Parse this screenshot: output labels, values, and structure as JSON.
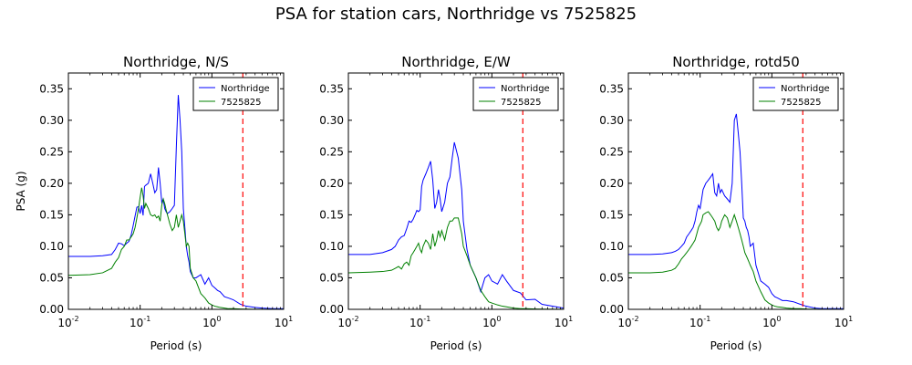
{
  "figure": {
    "suptitle": "PSA for station cars, Northridge vs 7525825"
  },
  "chart_data": [
    {
      "type": "line",
      "title": "Northridge, N/S",
      "xlabel": "Period (s)",
      "ylabel": "PSA (g)",
      "xscale": "log",
      "xlim": [
        0.01,
        10
      ],
      "ylim": [
        0,
        0.375
      ],
      "xticks": [
        0.01,
        0.1,
        1,
        10
      ],
      "xtick_labels": [
        [
          "10",
          "-2"
        ],
        [
          "10",
          "-1"
        ],
        [
          "10",
          "0"
        ],
        [
          "10",
          "1"
        ]
      ],
      "yticks": [
        0,
        0.05,
        0.1,
        0.15,
        0.2,
        0.25,
        0.3,
        0.35
      ],
      "ytick_labels": [
        "0.00",
        "0.05",
        "0.10",
        "0.15",
        "0.20",
        "0.25",
        "0.30",
        "0.35"
      ],
      "legend_position": "top-right",
      "vline": {
        "x": 2.7,
        "color": "#ff0000",
        "style": "dashed"
      },
      "series": [
        {
          "name": "Northridge",
          "color": "#0000ff",
          "x": [
            0.01,
            0.02,
            0.03,
            0.04,
            0.045,
            0.05,
            0.055,
            0.06,
            0.065,
            0.07,
            0.075,
            0.08,
            0.085,
            0.09,
            0.095,
            0.1,
            0.105,
            0.11,
            0.115,
            0.12,
            0.13,
            0.14,
            0.15,
            0.16,
            0.17,
            0.18,
            0.19,
            0.2,
            0.21,
            0.22,
            0.23,
            0.24,
            0.26,
            0.28,
            0.3,
            0.32,
            0.34,
            0.36,
            0.38,
            0.4,
            0.42,
            0.44,
            0.46,
            0.48,
            0.5,
            0.55,
            0.6,
            0.7,
            0.8,
            0.9,
            1.0,
            1.1,
            1.2,
            1.3,
            1.5,
            1.7,
            2.0,
            2.5,
            3.0,
            4.0,
            5.0,
            7.0,
            10.0
          ],
          "y": [
            0.084,
            0.084,
            0.085,
            0.087,
            0.095,
            0.105,
            0.104,
            0.101,
            0.105,
            0.108,
            0.118,
            0.133,
            0.148,
            0.162,
            0.163,
            0.152,
            0.165,
            0.149,
            0.195,
            0.197,
            0.2,
            0.215,
            0.2,
            0.185,
            0.19,
            0.225,
            0.2,
            0.17,
            0.175,
            0.16,
            0.155,
            0.152,
            0.155,
            0.16,
            0.165,
            0.26,
            0.34,
            0.3,
            0.25,
            0.16,
            0.13,
            0.1,
            0.085,
            0.075,
            0.06,
            0.05,
            0.05,
            0.055,
            0.04,
            0.05,
            0.038,
            0.034,
            0.03,
            0.028,
            0.02,
            0.018,
            0.015,
            0.008,
            0.005,
            0.003,
            0.002,
            0.001,
            0.001
          ]
        },
        {
          "name": "7525825",
          "color": "#008000",
          "x": [
            0.01,
            0.02,
            0.03,
            0.04,
            0.045,
            0.05,
            0.055,
            0.06,
            0.065,
            0.07,
            0.075,
            0.08,
            0.085,
            0.09,
            0.095,
            0.1,
            0.105,
            0.11,
            0.115,
            0.12,
            0.13,
            0.14,
            0.15,
            0.16,
            0.17,
            0.18,
            0.19,
            0.2,
            0.21,
            0.22,
            0.23,
            0.24,
            0.26,
            0.28,
            0.3,
            0.32,
            0.34,
            0.36,
            0.38,
            0.4,
            0.42,
            0.44,
            0.46,
            0.48,
            0.5,
            0.55,
            0.6,
            0.7,
            0.8,
            0.9,
            1.0,
            1.1,
            1.2,
            1.3,
            1.5,
            1.7,
            2.0,
            2.5,
            3.0,
            4.0,
            5.0,
            7.0,
            10.0
          ],
          "y": [
            0.054,
            0.055,
            0.058,
            0.065,
            0.075,
            0.082,
            0.095,
            0.1,
            0.11,
            0.11,
            0.115,
            0.12,
            0.13,
            0.145,
            0.16,
            0.178,
            0.193,
            0.18,
            0.16,
            0.168,
            0.16,
            0.15,
            0.148,
            0.15,
            0.145,
            0.148,
            0.14,
            0.165,
            0.175,
            0.168,
            0.158,
            0.15,
            0.135,
            0.125,
            0.13,
            0.15,
            0.13,
            0.14,
            0.15,
            0.14,
            0.12,
            0.1,
            0.105,
            0.1,
            0.065,
            0.05,
            0.045,
            0.025,
            0.018,
            0.01,
            0.007,
            0.005,
            0.004,
            0.003,
            0.002,
            0.001,
            0.001,
            0.0005,
            0.0003,
            0.0002,
            0.0001,
            0.0001,
            0.0001
          ]
        }
      ]
    },
    {
      "type": "line",
      "title": "Northridge, E/W",
      "xlabel": "Period (s)",
      "ylabel": "",
      "xscale": "log",
      "xlim": [
        0.01,
        10
      ],
      "ylim": [
        0,
        0.375
      ],
      "xticks": [
        0.01,
        0.1,
        1,
        10
      ],
      "xtick_labels": [
        [
          "10",
          "-2"
        ],
        [
          "10",
          "-1"
        ],
        [
          "10",
          "0"
        ],
        [
          "10",
          "1"
        ]
      ],
      "yticks": [
        0,
        0.05,
        0.1,
        0.15,
        0.2,
        0.25,
        0.3,
        0.35
      ],
      "ytick_labels": [
        "0.00",
        "0.05",
        "0.10",
        "0.15",
        "0.20",
        "0.25",
        "0.30",
        "0.35"
      ],
      "legend_position": "top-right",
      "vline": {
        "x": 2.7,
        "color": "#ff0000",
        "style": "dashed"
      },
      "series": [
        {
          "name": "Northridge",
          "color": "#0000ff",
          "x": [
            0.01,
            0.02,
            0.03,
            0.04,
            0.045,
            0.05,
            0.055,
            0.06,
            0.065,
            0.07,
            0.075,
            0.08,
            0.085,
            0.09,
            0.095,
            0.1,
            0.105,
            0.11,
            0.12,
            0.13,
            0.14,
            0.15,
            0.16,
            0.17,
            0.18,
            0.19,
            0.2,
            0.22,
            0.24,
            0.26,
            0.28,
            0.3,
            0.34,
            0.38,
            0.4,
            0.45,
            0.5,
            0.6,
            0.7,
            0.8,
            0.9,
            1.0,
            1.2,
            1.4,
            1.6,
            2.0,
            2.5,
            3.0,
            4.0,
            5.0,
            7.0,
            10.0
          ],
          "y": [
            0.087,
            0.087,
            0.09,
            0.095,
            0.1,
            0.11,
            0.115,
            0.117,
            0.128,
            0.14,
            0.138,
            0.143,
            0.15,
            0.157,
            0.155,
            0.158,
            0.195,
            0.205,
            0.215,
            0.225,
            0.235,
            0.205,
            0.16,
            0.17,
            0.19,
            0.175,
            0.155,
            0.17,
            0.2,
            0.21,
            0.24,
            0.265,
            0.24,
            0.19,
            0.14,
            0.095,
            0.07,
            0.05,
            0.028,
            0.05,
            0.055,
            0.045,
            0.04,
            0.055,
            0.045,
            0.03,
            0.026,
            0.015,
            0.016,
            0.008,
            0.005,
            0.002
          ]
        },
        {
          "name": "7525825",
          "color": "#008000",
          "x": [
            0.01,
            0.02,
            0.03,
            0.04,
            0.045,
            0.05,
            0.055,
            0.06,
            0.065,
            0.07,
            0.075,
            0.08,
            0.085,
            0.09,
            0.095,
            0.1,
            0.105,
            0.11,
            0.12,
            0.13,
            0.14,
            0.15,
            0.16,
            0.17,
            0.18,
            0.19,
            0.2,
            0.22,
            0.24,
            0.26,
            0.28,
            0.3,
            0.34,
            0.38,
            0.4,
            0.45,
            0.5,
            0.6,
            0.7,
            0.8,
            0.9,
            1.0,
            1.2,
            1.4,
            1.6,
            2.0,
            2.5,
            3.0,
            4.0,
            5.0,
            7.0,
            10.0
          ],
          "y": [
            0.058,
            0.059,
            0.06,
            0.062,
            0.065,
            0.068,
            0.064,
            0.072,
            0.075,
            0.07,
            0.085,
            0.09,
            0.095,
            0.1,
            0.105,
            0.095,
            0.09,
            0.1,
            0.11,
            0.105,
            0.095,
            0.12,
            0.1,
            0.11,
            0.125,
            0.115,
            0.125,
            0.11,
            0.13,
            0.14,
            0.14,
            0.145,
            0.145,
            0.12,
            0.1,
            0.085,
            0.07,
            0.05,
            0.03,
            0.02,
            0.012,
            0.01,
            0.007,
            0.005,
            0.004,
            0.002,
            0.001,
            0.001,
            0.0005,
            0.0003,
            0.0002,
            0.0001
          ]
        }
      ]
    },
    {
      "type": "line",
      "title": "Northridge, rotd50",
      "xlabel": "Period (s)",
      "ylabel": "",
      "xscale": "log",
      "xlim": [
        0.01,
        10
      ],
      "ylim": [
        0,
        0.375
      ],
      "xticks": [
        0.01,
        0.1,
        1,
        10
      ],
      "xtick_labels": [
        [
          "10",
          "-2"
        ],
        [
          "10",
          "-1"
        ],
        [
          "10",
          "0"
        ],
        [
          "10",
          "1"
        ]
      ],
      "yticks": [
        0,
        0.05,
        0.1,
        0.15,
        0.2,
        0.25,
        0.3,
        0.35
      ],
      "ytick_labels": [
        "0.00",
        "0.05",
        "0.10",
        "0.15",
        "0.20",
        "0.25",
        "0.30",
        "0.35"
      ],
      "legend_position": "top-right",
      "vline": {
        "x": 2.7,
        "color": "#ff0000",
        "style": "dashed"
      },
      "series": [
        {
          "name": "Northridge",
          "color": "#0000ff",
          "x": [
            0.01,
            0.02,
            0.03,
            0.04,
            0.045,
            0.05,
            0.055,
            0.06,
            0.065,
            0.07,
            0.075,
            0.08,
            0.085,
            0.09,
            0.095,
            0.1,
            0.105,
            0.11,
            0.12,
            0.13,
            0.14,
            0.15,
            0.16,
            0.17,
            0.18,
            0.19,
            0.2,
            0.22,
            0.24,
            0.26,
            0.28,
            0.3,
            0.32,
            0.34,
            0.36,
            0.38,
            0.4,
            0.42,
            0.44,
            0.46,
            0.48,
            0.5,
            0.55,
            0.6,
            0.7,
            0.8,
            0.9,
            1.0,
            1.1,
            1.2,
            1.4,
            1.6,
            2.0,
            2.5,
            3.0,
            4.0,
            5.0,
            7.0,
            10.0
          ],
          "y": [
            0.087,
            0.087,
            0.088,
            0.09,
            0.092,
            0.095,
            0.1,
            0.105,
            0.115,
            0.12,
            0.125,
            0.13,
            0.14,
            0.155,
            0.165,
            0.16,
            0.175,
            0.19,
            0.2,
            0.205,
            0.21,
            0.215,
            0.185,
            0.18,
            0.2,
            0.185,
            0.19,
            0.18,
            0.175,
            0.17,
            0.2,
            0.3,
            0.31,
            0.28,
            0.25,
            0.2,
            0.145,
            0.14,
            0.13,
            0.125,
            0.115,
            0.1,
            0.105,
            0.07,
            0.045,
            0.04,
            0.035,
            0.025,
            0.02,
            0.018,
            0.014,
            0.014,
            0.012,
            0.008,
            0.005,
            0.002,
            0.001,
            0.001,
            0.001
          ]
        },
        {
          "name": "7525825",
          "color": "#008000",
          "x": [
            0.01,
            0.02,
            0.03,
            0.04,
            0.045,
            0.05,
            0.055,
            0.06,
            0.065,
            0.07,
            0.075,
            0.08,
            0.085,
            0.09,
            0.095,
            0.1,
            0.105,
            0.11,
            0.12,
            0.13,
            0.14,
            0.15,
            0.16,
            0.17,
            0.18,
            0.19,
            0.2,
            0.22,
            0.24,
            0.26,
            0.28,
            0.3,
            0.32,
            0.34,
            0.36,
            0.38,
            0.4,
            0.42,
            0.44,
            0.46,
            0.48,
            0.5,
            0.55,
            0.6,
            0.7,
            0.8,
            0.9,
            1.0,
            1.1,
            1.2,
            1.4,
            1.6,
            2.0,
            2.5,
            3.0,
            4.0,
            5.0,
            7.0,
            10.0
          ],
          "y": [
            0.058,
            0.058,
            0.059,
            0.062,
            0.065,
            0.072,
            0.08,
            0.085,
            0.09,
            0.095,
            0.1,
            0.105,
            0.11,
            0.12,
            0.13,
            0.135,
            0.14,
            0.15,
            0.153,
            0.155,
            0.15,
            0.145,
            0.14,
            0.13,
            0.125,
            0.13,
            0.14,
            0.15,
            0.145,
            0.13,
            0.14,
            0.15,
            0.14,
            0.13,
            0.12,
            0.11,
            0.1,
            0.09,
            0.085,
            0.08,
            0.075,
            0.07,
            0.06,
            0.045,
            0.028,
            0.015,
            0.01,
            0.007,
            0.005,
            0.004,
            0.003,
            0.002,
            0.001,
            0.001,
            0.0005,
            0.0003,
            0.0002,
            0.0001,
            0.0001
          ]
        }
      ]
    }
  ]
}
